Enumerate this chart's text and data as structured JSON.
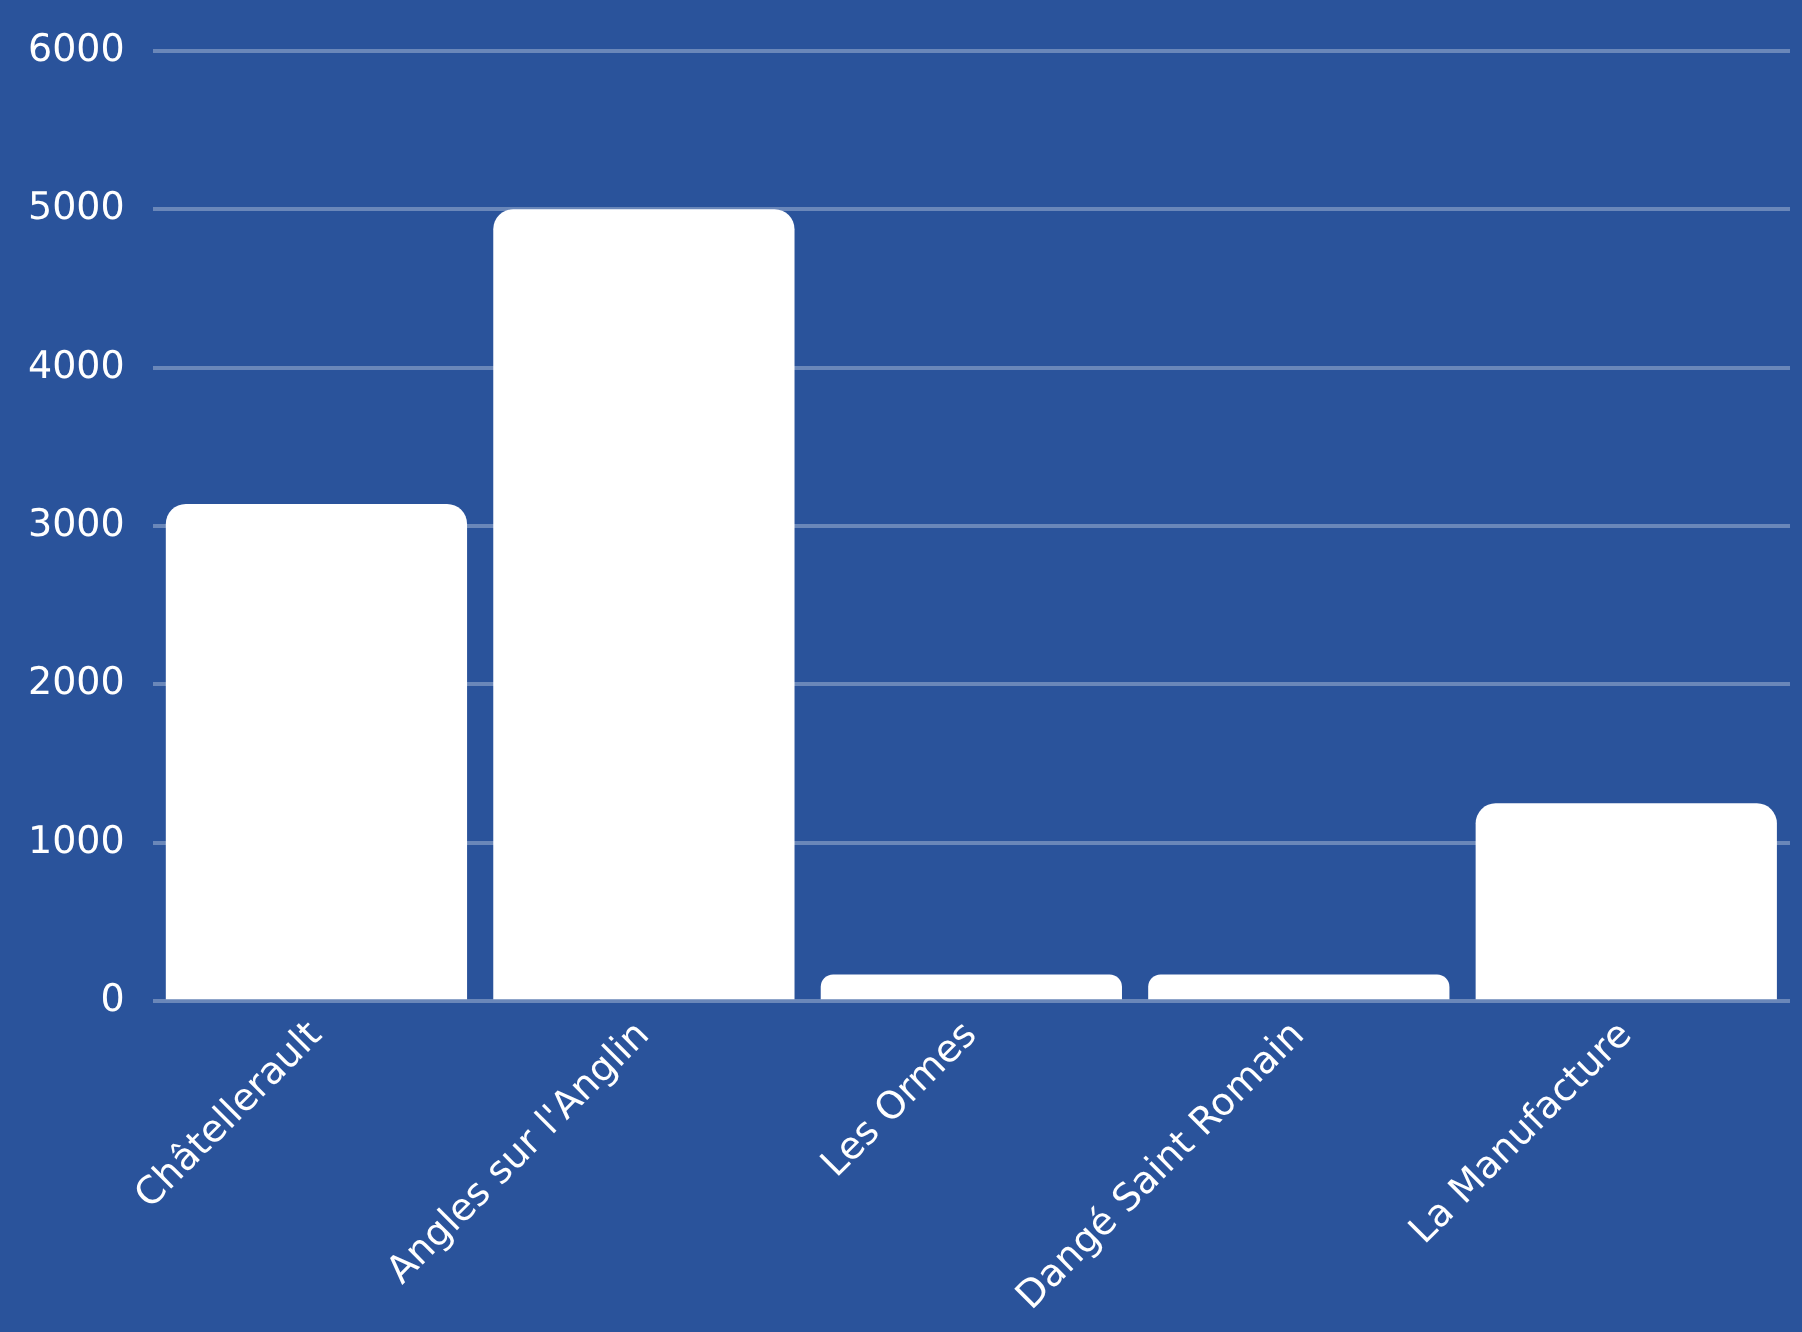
{
  "chart_data": {
    "type": "bar",
    "categories": [
      "Châtellerault",
      "Angles sur l'Anglin",
      "Les Ormes",
      "Dangé Saint Romain",
      "La Manufacture"
    ],
    "values": [
      3140,
      5000,
      170,
      170,
      1250
    ],
    "color": "#ffffff",
    "ylim": [
      0,
      6000
    ],
    "yticks": [
      0,
      1000,
      2000,
      3000,
      4000,
      5000,
      6000
    ],
    "grid": "y"
  }
}
